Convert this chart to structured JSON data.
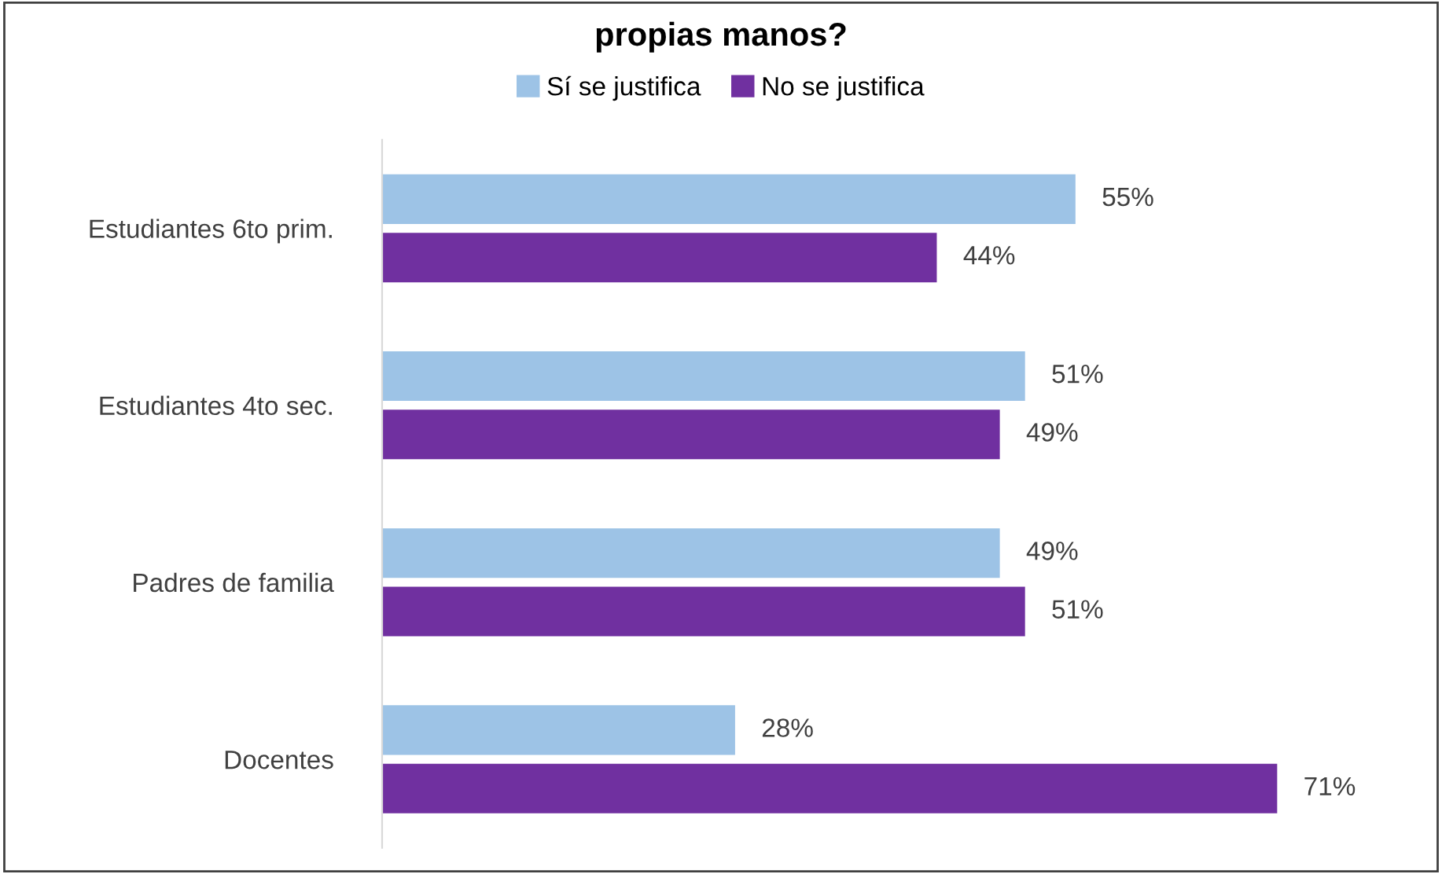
{
  "chart_data": {
    "type": "bar",
    "orientation": "horizontal",
    "title": "propias manos?",
    "categories": [
      "Estudiantes 6to prim.",
      "Estudiantes 4to sec.",
      "Padres de familia",
      "Docentes"
    ],
    "series": [
      {
        "name": "Sí se justifica",
        "color": "#9dc3e6",
        "values": [
          55,
          51,
          49,
          28
        ],
        "value_labels": [
          "55%",
          "51%",
          "49%",
          "28%"
        ]
      },
      {
        "name": "No se justifica",
        "color": "#7030a0",
        "values": [
          44,
          49,
          51,
          71
        ],
        "value_labels": [
          "44%",
          "49%",
          "51%",
          "71%"
        ]
      }
    ],
    "legend": "top",
    "grid": false,
    "tick_labels": "y"
  }
}
